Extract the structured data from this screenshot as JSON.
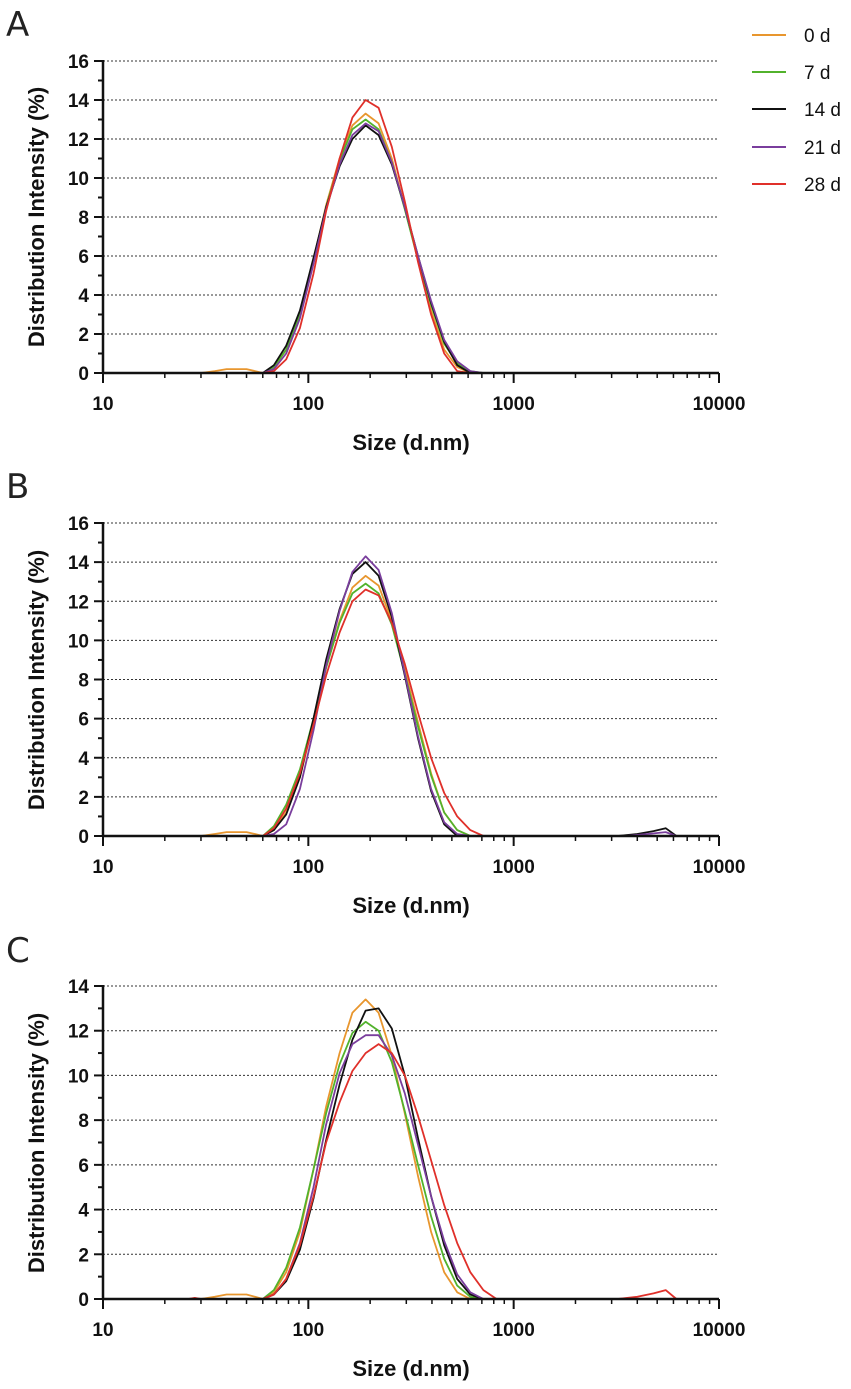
{
  "legend": [
    {
      "name": "0 d",
      "color": "#E8962E"
    },
    {
      "name": "7 d",
      "color": "#52B22C"
    },
    {
      "name": "14 d",
      "color": "#111111"
    },
    {
      "name": "21 d",
      "color": "#7A3E9D"
    },
    {
      "name": "28 d",
      "color": "#E0302A"
    }
  ],
  "chart_data": [
    {
      "panel": "A",
      "type": "line",
      "xscale": "log",
      "xlim": [
        10,
        10000
      ],
      "ylim": [
        0,
        16
      ],
      "yticks": [
        0,
        2,
        4,
        6,
        8,
        10,
        12,
        14,
        16
      ],
      "xticks": [
        10,
        100,
        1000,
        10000
      ],
      "xlabel": "Size (d.nm)",
      "ylabel": "Distribution Intensity (%)",
      "series": [
        {
          "name": "0 d",
          "color": "#E8962E",
          "x": [
            10,
            30,
            35,
            40,
            45,
            50,
            55,
            60,
            68,
            78,
            91,
            106,
            122,
            142,
            164,
            190,
            220,
            255,
            295,
            342,
            396,
            459,
            531,
            615,
            712,
            825,
            10000
          ],
          "y": [
            0,
            0,
            0.1,
            0.2,
            0.2,
            0.2,
            0.1,
            0,
            0.3,
            1.2,
            3.0,
            5.8,
            8.6,
            11.0,
            12.7,
            13.3,
            12.8,
            11.0,
            8.5,
            5.8,
            3.2,
            1.2,
            0.3,
            0,
            0,
            0,
            0
          ]
        },
        {
          "name": "7 d",
          "color": "#52B22C",
          "x": [
            10,
            60,
            68,
            78,
            91,
            106,
            122,
            142,
            164,
            190,
            220,
            255,
            295,
            342,
            396,
            459,
            531,
            615,
            712,
            825,
            10000
          ],
          "y": [
            0,
            0,
            0.3,
            1.2,
            3.0,
            5.8,
            8.5,
            10.9,
            12.5,
            13.0,
            12.5,
            10.8,
            8.4,
            5.8,
            3.5,
            1.5,
            0.5,
            0.1,
            0,
            0,
            0
          ]
        },
        {
          "name": "14 d",
          "color": "#111111",
          "x": [
            10,
            60,
            68,
            78,
            91,
            106,
            122,
            142,
            164,
            190,
            220,
            255,
            295,
            342,
            396,
            459,
            531,
            615,
            712,
            825,
            10000
          ],
          "y": [
            0,
            0,
            0.4,
            1.4,
            3.2,
            5.9,
            8.5,
            10.6,
            12.0,
            12.7,
            12.2,
            10.7,
            8.5,
            6.0,
            3.6,
            1.6,
            0.4,
            0,
            0,
            0,
            0
          ]
        },
        {
          "name": "21 d",
          "color": "#7A3E9D",
          "x": [
            10,
            60,
            68,
            78,
            91,
            106,
            122,
            142,
            164,
            190,
            220,
            255,
            295,
            342,
            396,
            459,
            531,
            615,
            712,
            825,
            10000
          ],
          "y": [
            0,
            0,
            0.2,
            1.0,
            2.8,
            5.6,
            8.4,
            10.7,
            12.2,
            12.8,
            12.4,
            10.8,
            8.5,
            6.0,
            3.7,
            1.7,
            0.6,
            0.1,
            0,
            0,
            0
          ]
        },
        {
          "name": "28 d",
          "color": "#E0302A",
          "x": [
            10,
            60,
            68,
            78,
            91,
            106,
            122,
            142,
            164,
            190,
            220,
            255,
            295,
            342,
            396,
            459,
            531,
            615,
            712,
            825,
            10000
          ],
          "y": [
            0,
            0,
            0.1,
            0.7,
            2.3,
            5.1,
            8.3,
            11.0,
            13.1,
            14.0,
            13.6,
            11.6,
            8.8,
            5.7,
            3.0,
            1.0,
            0.1,
            0,
            0,
            0,
            0
          ]
        }
      ]
    },
    {
      "panel": "B",
      "type": "line",
      "xscale": "log",
      "xlim": [
        10,
        10000
      ],
      "ylim": [
        0,
        16
      ],
      "yticks": [
        0,
        2,
        4,
        6,
        8,
        10,
        12,
        14,
        16
      ],
      "xticks": [
        10,
        100,
        1000,
        10000
      ],
      "xlabel": "Size (d.nm)",
      "ylabel": "Distribution Intensity (%)",
      "series": [
        {
          "name": "0 d",
          "color": "#E8962E",
          "x": [
            10,
            30,
            35,
            40,
            45,
            50,
            55,
            60,
            68,
            78,
            91,
            106,
            122,
            142,
            164,
            190,
            220,
            255,
            295,
            342,
            396,
            459,
            531,
            615,
            712,
            825,
            10000
          ],
          "y": [
            0,
            0,
            0.1,
            0.2,
            0.2,
            0.2,
            0.1,
            0,
            0.3,
            1.2,
            3.0,
            5.8,
            8.6,
            11.0,
            12.7,
            13.3,
            12.8,
            11.0,
            8.5,
            5.8,
            3.2,
            1.2,
            0.3,
            0,
            0,
            0,
            0
          ]
        },
        {
          "name": "7 d",
          "color": "#52B22C",
          "x": [
            10,
            60,
            68,
            78,
            91,
            106,
            122,
            142,
            164,
            190,
            220,
            255,
            295,
            342,
            396,
            459,
            531,
            615,
            712,
            825,
            10000
          ],
          "y": [
            0,
            0,
            0.5,
            1.6,
            3.4,
            6.0,
            8.6,
            10.9,
            12.4,
            12.9,
            12.4,
            10.8,
            8.3,
            5.6,
            3.1,
            1.2,
            0.3,
            0,
            0,
            0,
            0
          ]
        },
        {
          "name": "14 d",
          "color": "#111111",
          "x": [
            10,
            60,
            68,
            78,
            91,
            106,
            122,
            142,
            164,
            190,
            220,
            255,
            295,
            342,
            396,
            459,
            531,
            615,
            712,
            825,
            3200,
            4000,
            4800,
            5500,
            6200,
            10000
          ],
          "y": [
            0,
            0,
            0.3,
            1.1,
            3.0,
            6.0,
            9.0,
            11.6,
            13.4,
            14.0,
            13.3,
            11.2,
            8.2,
            5.0,
            2.3,
            0.6,
            0,
            0,
            0,
            0,
            0,
            0.1,
            0.25,
            0.4,
            0,
            0
          ]
        },
        {
          "name": "21 d",
          "color": "#7A3E9D",
          "x": [
            10,
            60,
            68,
            78,
            91,
            106,
            122,
            142,
            164,
            190,
            220,
            255,
            295,
            342,
            396,
            459,
            531,
            615,
            712,
            825,
            3500,
            4500,
            5500,
            6200,
            10000
          ],
          "y": [
            0,
            0,
            0.1,
            0.6,
            2.4,
            5.4,
            8.7,
            11.5,
            13.5,
            14.3,
            13.6,
            11.4,
            8.3,
            5.1,
            2.4,
            0.7,
            0.1,
            0,
            0,
            0,
            0,
            0.1,
            0.2,
            0,
            0
          ]
        },
        {
          "name": "28 d",
          "color": "#E0302A",
          "x": [
            10,
            60,
            68,
            78,
            91,
            106,
            122,
            142,
            164,
            190,
            220,
            255,
            295,
            342,
            396,
            459,
            531,
            615,
            712,
            825,
            10000
          ],
          "y": [
            0,
            0,
            0.4,
            1.4,
            3.2,
            5.7,
            8.2,
            10.4,
            12.0,
            12.6,
            12.3,
            10.9,
            8.8,
            6.3,
            4.0,
            2.2,
            1.0,
            0.3,
            0,
            0,
            0
          ]
        }
      ]
    },
    {
      "panel": "C",
      "type": "line",
      "xscale": "log",
      "xlim": [
        10,
        10000
      ],
      "ylim": [
        0,
        14
      ],
      "yticks": [
        0,
        2,
        4,
        6,
        8,
        10,
        12,
        14
      ],
      "xticks": [
        10,
        100,
        1000,
        10000
      ],
      "xlabel": "Size (d.nm)",
      "ylabel": "Distribution Intensity (%)",
      "series": [
        {
          "name": "0 d",
          "color": "#E8962E",
          "x": [
            10,
            30,
            35,
            40,
            45,
            50,
            55,
            60,
            68,
            78,
            91,
            106,
            122,
            142,
            164,
            190,
            220,
            255,
            295,
            342,
            396,
            459,
            531,
            615,
            712,
            825,
            10000
          ],
          "y": [
            0,
            0,
            0.1,
            0.2,
            0.2,
            0.2,
            0.1,
            0,
            0.3,
            1.2,
            3.0,
            5.8,
            8.6,
            11.0,
            12.8,
            13.4,
            12.8,
            10.9,
            8.3,
            5.5,
            3.0,
            1.2,
            0.3,
            0,
            0,
            0,
            0
          ]
        },
        {
          "name": "7 d",
          "color": "#52B22C",
          "x": [
            10,
            60,
            68,
            78,
            91,
            106,
            122,
            142,
            164,
            190,
            220,
            255,
            295,
            342,
            396,
            459,
            531,
            615,
            712,
            825,
            10000
          ],
          "y": [
            0,
            0,
            0.4,
            1.4,
            3.2,
            5.8,
            8.3,
            10.5,
            11.9,
            12.4,
            12.0,
            10.6,
            8.4,
            6.0,
            3.7,
            1.8,
            0.6,
            0.1,
            0,
            0,
            0
          ]
        },
        {
          "name": "14 d",
          "color": "#111111",
          "x": [
            10,
            60,
            68,
            78,
            91,
            106,
            122,
            142,
            164,
            190,
            220,
            255,
            295,
            342,
            396,
            459,
            531,
            615,
            712,
            825,
            10000
          ],
          "y": [
            0,
            0,
            0.2,
            0.8,
            2.2,
            4.5,
            7.1,
            9.6,
            11.6,
            12.9,
            13.0,
            12.1,
            10.0,
            7.2,
            4.6,
            2.4,
            0.9,
            0.2,
            0,
            0,
            0
          ]
        },
        {
          "name": "21 d",
          "color": "#7A3E9D",
          "x": [
            10,
            60,
            68,
            78,
            91,
            106,
            122,
            142,
            164,
            190,
            220,
            255,
            295,
            342,
            396,
            459,
            531,
            615,
            712,
            825,
            10000
          ],
          "y": [
            0,
            0,
            0.2,
            0.9,
            2.5,
            5.0,
            7.8,
            10.1,
            11.4,
            11.8,
            11.8,
            10.9,
            9.2,
            6.9,
            4.6,
            2.6,
            1.1,
            0.3,
            0,
            0,
            0
          ]
        },
        {
          "name": "28 d",
          "color": "#E0302A",
          "x": [
            10,
            26,
            28,
            30,
            60,
            68,
            78,
            91,
            106,
            122,
            142,
            164,
            190,
            220,
            255,
            295,
            342,
            396,
            459,
            531,
            615,
            712,
            825,
            3200,
            4000,
            4800,
            5500,
            6200,
            10000
          ],
          "y": [
            0,
            0,
            0.05,
            0,
            0,
            0.2,
            0.9,
            2.4,
            4.6,
            7.0,
            8.8,
            10.2,
            11.0,
            11.4,
            11.0,
            10.0,
            8.2,
            6.2,
            4.2,
            2.5,
            1.2,
            0.4,
            0,
            0,
            0.1,
            0.25,
            0.4,
            0,
            0
          ]
        }
      ]
    }
  ]
}
